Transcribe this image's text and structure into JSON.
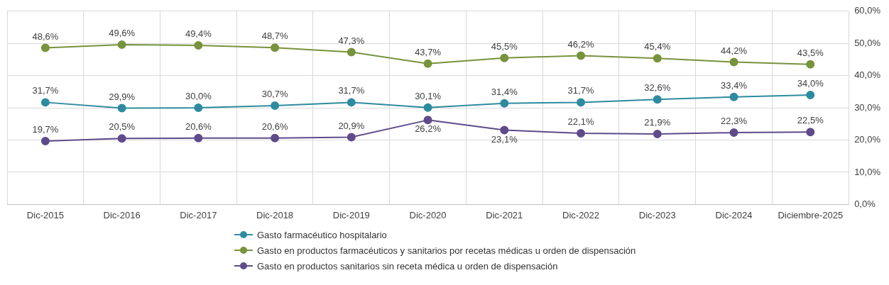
{
  "chart_data": {
    "type": "line",
    "categories": [
      "Dic-2015",
      "Dic-2016",
      "Dic-2017",
      "Dic-2018",
      "Dic-2019",
      "Dic-2020",
      "Dic-2021",
      "Dic-2022",
      "Dic-2023",
      "Dic-2024",
      "Diciembre-2025"
    ],
    "series": [
      {
        "name": "Gasto farmacéutico hospitalario",
        "color": "#2e8b9f",
        "values": [
          31.7,
          29.9,
          30.0,
          30.7,
          31.7,
          30.1,
          31.4,
          31.7,
          32.6,
          33.4,
          34.0
        ],
        "value_labels": [
          "31,7%",
          "29,9%",
          "30,0%",
          "30,7%",
          "31,7%",
          "30,1%",
          "31,4%",
          "31,7%",
          "32,6%",
          "33,4%",
          "34,0%"
        ]
      },
      {
        "name": "Gasto en productos farmacéuticos y sanitarios por recetas médicas u orden de dispensación",
        "color": "#77933c",
        "values": [
          48.6,
          49.6,
          49.4,
          48.7,
          47.3,
          43.7,
          45.5,
          46.2,
          45.4,
          44.2,
          43.5
        ],
        "value_labels": [
          "48,6%",
          "49,6%",
          "49,4%",
          "48,7%",
          "47,3%",
          "43,7%",
          "45,5%",
          "46,2%",
          "45,4%",
          "44,2%",
          "43,5%"
        ]
      },
      {
        "name": "Gasto en productos sanitarios sin receta médica u orden de dispensación",
        "color": "#5f4b8b",
        "values": [
          19.7,
          20.5,
          20.6,
          20.6,
          20.9,
          26.2,
          23.1,
          22.1,
          21.9,
          22.3,
          22.5
        ],
        "value_labels": [
          "19,7%",
          "20,5%",
          "20,6%",
          "20,6%",
          "20,9%",
          "26,2%",
          "23,1%",
          "22,1%",
          "21,9%",
          "22,3%",
          "22,5%"
        ]
      }
    ],
    "ylim": [
      0,
      60
    ],
    "yticks": [
      {
        "value": 0,
        "label": "0,0%"
      },
      {
        "value": 10,
        "label": "10,0%"
      },
      {
        "value": 20,
        "label": "20,0%"
      },
      {
        "value": 30,
        "label": "30,0%"
      },
      {
        "value": 40,
        "label": "40,0%"
      },
      {
        "value": 50,
        "label": "50,0%"
      },
      {
        "value": 60,
        "label": "60,0%"
      }
    ],
    "grid": true,
    "legend": "bottom",
    "marker": "circle",
    "line_style": "solid"
  }
}
